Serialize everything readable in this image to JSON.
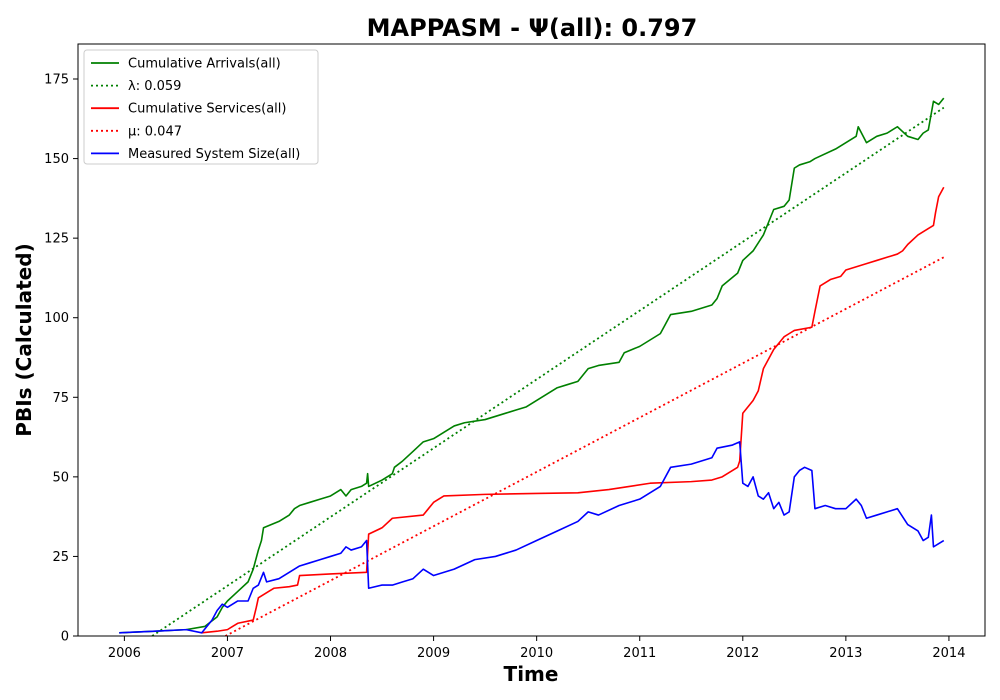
{
  "chart_data": {
    "type": "line",
    "title": "MAPPASM -  Ψ(all): 0.797",
    "xlabel": "Time",
    "ylabel": "PBIs (Calculated)",
    "xlim": [
      2005.55,
      2014.35
    ],
    "ylim": [
      0,
      186
    ],
    "x_ticks": [
      2006,
      2007,
      2008,
      2009,
      2010,
      2011,
      2012,
      2013,
      2014
    ],
    "x_tick_labels": [
      "2006",
      "2007",
      "2008",
      "2009",
      "2010",
      "2011",
      "2012",
      "2013",
      "2014"
    ],
    "y_ticks": [
      0,
      25,
      50,
      75,
      100,
      125,
      150,
      175
    ],
    "y_tick_labels": [
      "0",
      "25",
      "50",
      "75",
      "100",
      "125",
      "150",
      "175"
    ],
    "grid": false,
    "legend_position": "top-left",
    "series": [
      {
        "name": "Cumulative Arrivals(all)",
        "color": "#008000",
        "style": "solid",
        "x": [
          2005.95,
          2006.3,
          2006.6,
          2006.78,
          2006.82,
          2006.9,
          2006.95,
          2007.0,
          2007.1,
          2007.2,
          2007.25,
          2007.3,
          2007.33,
          2007.35,
          2007.5,
          2007.6,
          2007.65,
          2007.7,
          2007.8,
          2007.9,
          2008.0,
          2008.1,
          2008.15,
          2008.2,
          2008.3,
          2008.35,
          2008.36,
          2008.37,
          2008.5,
          2008.6,
          2008.62,
          2008.7,
          2008.8,
          2008.9,
          2009.0,
          2009.1,
          2009.2,
          2009.3,
          2009.5,
          2009.7,
          2009.8,
          2009.9,
          2010.0,
          2010.1,
          2010.2,
          2010.3,
          2010.4,
          2010.45,
          2010.5,
          2010.6,
          2010.8,
          2010.85,
          2011.0,
          2011.1,
          2011.2,
          2011.25,
          2011.3,
          2011.5,
          2011.7,
          2011.75,
          2011.8,
          2011.95,
          2012.0,
          2012.1,
          2012.2,
          2012.25,
          2012.3,
          2012.4,
          2012.45,
          2012.5,
          2012.55,
          2012.65,
          2012.7,
          2012.9,
          2013.1,
          2013.12,
          2013.2,
          2013.3,
          2013.4,
          2013.5,
          2013.6,
          2013.7,
          2013.75,
          2013.8,
          2013.85,
          2013.9,
          2013.95
        ],
        "values": [
          1,
          1.5,
          2,
          3,
          4,
          6,
          9,
          11,
          14,
          17,
          21,
          27,
          30,
          34,
          36,
          38,
          40,
          41,
          42,
          43,
          44,
          46,
          44,
          46,
          47,
          48,
          51,
          47,
          49,
          51,
          53,
          55,
          58,
          61,
          62,
          64,
          66,
          67,
          68,
          70,
          71,
          72,
          74,
          76,
          78,
          79,
          80,
          82,
          84,
          85,
          86,
          89,
          91,
          93,
          95,
          98,
          101,
          102,
          104,
          106,
          110,
          114,
          118,
          121,
          126,
          130,
          134,
          135,
          137,
          147,
          148,
          149,
          150,
          153,
          157,
          160,
          155,
          157,
          158,
          160,
          157,
          156,
          158,
          159,
          168,
          167,
          169
        ]
      },
      {
        "name": "λ: 0.059",
        "color": "#008000",
        "style": "dotted",
        "x": [
          2006.27,
          2013.95
        ],
        "values": [
          0,
          166
        ]
      },
      {
        "name": "Cumulative Services(all)",
        "color": "#ff0000",
        "style": "solid",
        "x": [
          2006.75,
          2006.9,
          2007.0,
          2007.05,
          2007.1,
          2007.25,
          2007.28,
          2007.3,
          2007.4,
          2007.45,
          2007.6,
          2007.68,
          2007.7,
          2008.0,
          2008.35,
          2008.37,
          2008.5,
          2008.6,
          2008.9,
          2008.95,
          2009.0,
          2009.1,
          2009.5,
          2010.0,
          2010.4,
          2010.7,
          2010.9,
          2011.1,
          2011.5,
          2011.7,
          2011.8,
          2011.95,
          2011.97,
          2012.0,
          2012.1,
          2012.15,
          2012.2,
          2012.3,
          2012.4,
          2012.45,
          2012.5,
          2012.67,
          2012.7,
          2012.75,
          2012.85,
          2012.95,
          2013.0,
          2013.2,
          2013.3,
          2013.5,
          2013.55,
          2013.6,
          2013.7,
          2013.8,
          2013.85,
          2013.87,
          2013.9,
          2013.95
        ],
        "values": [
          1,
          1.5,
          2,
          3,
          4,
          5,
          9,
          12,
          14,
          15,
          15.5,
          16,
          19,
          19.5,
          20,
          32,
          34,
          37,
          38,
          40,
          42,
          44,
          44.5,
          44.8,
          45,
          46,
          47,
          48,
          48.5,
          49,
          50,
          53,
          55,
          70,
          74,
          77,
          84,
          90,
          94,
          95,
          96,
          97,
          102,
          110,
          112,
          113,
          115,
          117,
          118,
          120,
          121,
          123,
          126,
          128,
          129,
          133,
          138,
          141
        ]
      },
      {
        "name": "μ: 0.047",
        "color": "#ff0000",
        "style": "dotted",
        "x": [
          2006.98,
          2013.95
        ],
        "values": [
          0,
          119
        ]
      },
      {
        "name": "Measured System Size(all)",
        "color": "#0000ff",
        "style": "solid",
        "x": [
          2005.95,
          2006.3,
          2006.6,
          2006.75,
          2006.8,
          2006.85,
          2006.9,
          2006.95,
          2007.0,
          2007.1,
          2007.2,
          2007.25,
          2007.3,
          2007.35,
          2007.38,
          2007.5,
          2007.6,
          2007.7,
          2007.8,
          2007.9,
          2008.0,
          2008.1,
          2008.15,
          2008.2,
          2008.3,
          2008.35,
          2008.37,
          2008.5,
          2008.6,
          2008.7,
          2008.8,
          2008.9,
          2009.0,
          2009.2,
          2009.4,
          2009.6,
          2009.8,
          2010.0,
          2010.2,
          2010.4,
          2010.5,
          2010.6,
          2010.8,
          2011.0,
          2011.1,
          2011.2,
          2011.3,
          2011.5,
          2011.7,
          2011.75,
          2011.9,
          2011.97,
          2012.0,
          2012.05,
          2012.1,
          2012.15,
          2012.2,
          2012.25,
          2012.3,
          2012.35,
          2012.4,
          2012.45,
          2012.5,
          2012.55,
          2012.6,
          2012.67,
          2012.7,
          2012.8,
          2012.9,
          2013.0,
          2013.1,
          2013.15,
          2013.2,
          2013.3,
          2013.4,
          2013.5,
          2013.6,
          2013.7,
          2013.75,
          2013.8,
          2013.83,
          2013.85,
          2013.9,
          2013.95
        ],
        "values": [
          1,
          1.5,
          2,
          1,
          3,
          5,
          8,
          10,
          9,
          11,
          11,
          15,
          16,
          20,
          17,
          18,
          20,
          22,
          23,
          24,
          25,
          26,
          28,
          27,
          28,
          30,
          15,
          16,
          16,
          17,
          18,
          21,
          19,
          21,
          24,
          25,
          27,
          30,
          33,
          36,
          39,
          38,
          41,
          43,
          45,
          47,
          53,
          54,
          56,
          59,
          60,
          61,
          48,
          47,
          50,
          44,
          43,
          45,
          40,
          42,
          38,
          39,
          50,
          52,
          53,
          52,
          40,
          41,
          40,
          40,
          43,
          41,
          37,
          38,
          39,
          40,
          35,
          33,
          30,
          31,
          38,
          28,
          29,
          30
        ]
      }
    ]
  }
}
